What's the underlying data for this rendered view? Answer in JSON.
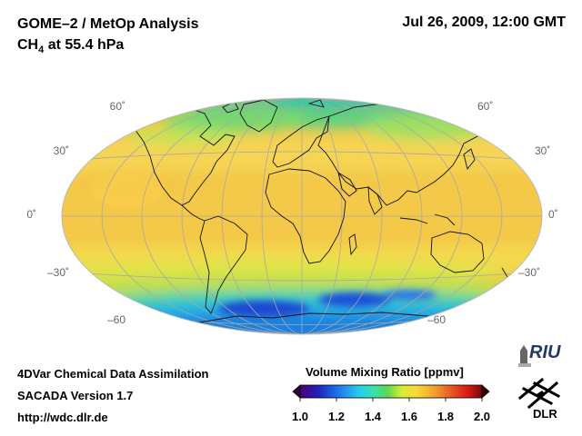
{
  "header": {
    "title": "GOME–2 / MetOp Analysis",
    "species": "CH",
    "species_sub": "4",
    "level": "at 55.4 hPa",
    "datetime": "Jul 26, 2009, 12:00 GMT"
  },
  "map": {
    "projection": "hammer-aitoff",
    "lat_labels_left": [
      "60˚",
      "30˚",
      "0˚",
      "–30˚",
      "–60"
    ],
    "lat_labels_right": [
      "60˚",
      "30˚",
      "0˚",
      "–30˚",
      "–60"
    ]
  },
  "footer": {
    "line1": "4DVar Chemical Data Assimilation",
    "line2": "SACADA Version 1.7",
    "line3": "http://wdc.dlr.de"
  },
  "colorbar": {
    "title": "Volume Mixing Ratio [ppmv]",
    "ticks": [
      "1.0",
      "1.2",
      "1.4",
      "1.6",
      "1.8",
      "2.0"
    ],
    "colors": [
      "#4b0070",
      "#2020c0",
      "#1e6fe8",
      "#28c8f0",
      "#38e0b0",
      "#5ad850",
      "#d8ee30",
      "#f8d838",
      "#f0a030",
      "#e85020",
      "#d81818",
      "#7a0808"
    ]
  },
  "logos": {
    "riu_text": "RIU",
    "dlr_text": "DLR"
  }
}
